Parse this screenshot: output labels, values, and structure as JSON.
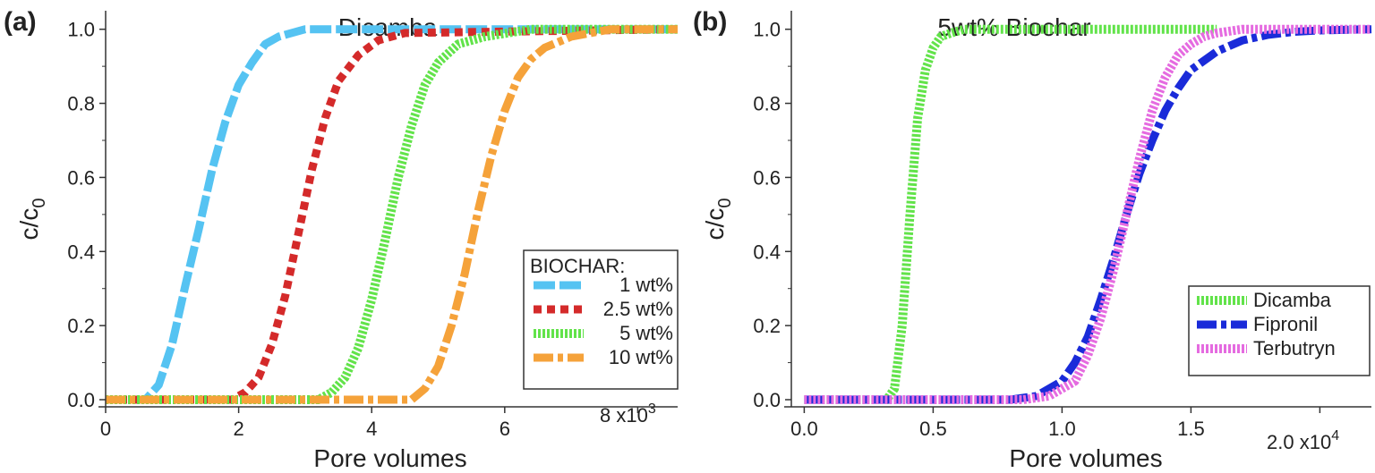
{
  "chart_data": [
    {
      "panel_label": "(a)",
      "type": "line",
      "title": "Dicamba",
      "xlabel": "Pore volumes",
      "ylabel": "c/c",
      "ylabel_sub": "0",
      "x_multiplier": "x10",
      "x_multiplier_exp": "3",
      "xlim": [
        0,
        8600
      ],
      "ylim": [
        0,
        1.05
      ],
      "xticks": [
        0,
        2000,
        4000,
        6000,
        8000
      ],
      "xtick_labels": [
        "0",
        "2",
        "4",
        "6",
        "8"
      ],
      "yticks": [
        0.0,
        0.2,
        0.4,
        0.6,
        0.8,
        1.0
      ],
      "ytick_labels": [
        "0.0",
        "0.2",
        "0.4",
        "0.6",
        "0.8",
        "1.0"
      ],
      "legend": {
        "title": "BIOCHAR:",
        "position": "bottom-right"
      },
      "series": [
        {
          "name": "1 wt%",
          "color": "#55c3f2",
          "dash": "dash",
          "x": [
            0,
            600,
            800,
            1000,
            1200,
            1400,
            1600,
            1800,
            2000,
            2200,
            2400,
            2600,
            3000,
            8600
          ],
          "y": [
            0,
            0,
            0.04,
            0.15,
            0.31,
            0.46,
            0.62,
            0.75,
            0.85,
            0.91,
            0.96,
            0.98,
            1.0,
            1.0
          ]
        },
        {
          "name": "2.5 wt%",
          "color": "#d42a2a",
          "dash": "dot",
          "x": [
            0,
            1900,
            2100,
            2300,
            2500,
            2700,
            2900,
            3100,
            3300,
            3500,
            3800,
            4100,
            4500,
            8600
          ],
          "y": [
            0,
            0,
            0.02,
            0.06,
            0.15,
            0.28,
            0.45,
            0.62,
            0.76,
            0.86,
            0.93,
            0.97,
            0.99,
            1.0
          ]
        },
        {
          "name": "5 wt%",
          "color": "#62e34a",
          "dash": "hatch",
          "x": [
            0,
            3200,
            3400,
            3600,
            3800,
            4000,
            4200,
            4400,
            4600,
            4800,
            5000,
            5300,
            5700,
            6400,
            8600
          ],
          "y": [
            0,
            0,
            0.02,
            0.06,
            0.14,
            0.27,
            0.43,
            0.6,
            0.74,
            0.85,
            0.91,
            0.96,
            0.98,
            1.0,
            1.0
          ]
        },
        {
          "name": "10 wt%",
          "color": "#f5a23a",
          "dash": "dashdot",
          "x": [
            0,
            4600,
            4800,
            5000,
            5200,
            5400,
            5600,
            5800,
            6000,
            6200,
            6400,
            6600,
            7000,
            7600,
            8600
          ],
          "y": [
            0,
            0,
            0.03,
            0.09,
            0.2,
            0.34,
            0.51,
            0.66,
            0.78,
            0.87,
            0.92,
            0.95,
            0.98,
            1.0,
            1.0
          ]
        }
      ]
    },
    {
      "panel_label": "(b)",
      "type": "line",
      "title": "5wt% Biochar",
      "xlabel": "Pore volumes",
      "ylabel": "c/c",
      "ylabel_sub": "0",
      "x_multiplier": "x10",
      "x_multiplier_exp": "4",
      "xlim": [
        -500,
        22000
      ],
      "ylim": [
        0,
        1.05
      ],
      "xticks": [
        0,
        5000,
        10000,
        15000,
        20000
      ],
      "xtick_labels": [
        "0.0",
        "0.5",
        "1.0",
        "1.5",
        "2.0"
      ],
      "yticks": [
        0.0,
        0.2,
        0.4,
        0.6,
        0.8,
        1.0
      ],
      "ytick_labels": [
        "0.0",
        "0.2",
        "0.4",
        "0.6",
        "0.8",
        "1.0"
      ],
      "legend": {
        "title": "",
        "position": "bottom-right"
      },
      "series": [
        {
          "name": "Dicamba",
          "color": "#62e34a",
          "dash": "hatch",
          "x": [
            0,
            3200,
            3500,
            3800,
            4100,
            4400,
            4700,
            5000,
            5300,
            5700,
            6200,
            16000
          ],
          "y": [
            0,
            0,
            0.03,
            0.2,
            0.5,
            0.76,
            0.89,
            0.95,
            0.98,
            0.99,
            1.0,
            1.0
          ]
        },
        {
          "name": "Fipronil",
          "color": "#1a2bd9",
          "dash": "dashdot",
          "x": [
            0,
            8000,
            9000,
            10000,
            10500,
            11000,
            11500,
            12000,
            12500,
            13000,
            13500,
            14000,
            14500,
            15000,
            16000,
            17000,
            18000,
            19000,
            20000,
            22000
          ],
          "y": [
            0,
            0,
            0.01,
            0.05,
            0.1,
            0.17,
            0.27,
            0.38,
            0.5,
            0.61,
            0.7,
            0.78,
            0.84,
            0.89,
            0.94,
            0.97,
            0.985,
            0.993,
            0.997,
            1.0
          ]
        },
        {
          "name": "Terbutryn",
          "color": "#e56be0",
          "dash": "hatch",
          "x": [
            0,
            8500,
            9500,
            10500,
            11000,
            11500,
            12000,
            12500,
            13000,
            13500,
            14000,
            14500,
            15000,
            15500,
            16000,
            17000,
            18000,
            22000
          ],
          "y": [
            0,
            0,
            0.01,
            0.05,
            0.12,
            0.22,
            0.35,
            0.5,
            0.65,
            0.78,
            0.87,
            0.93,
            0.96,
            0.98,
            0.99,
            1.0,
            1.0,
            1.0
          ]
        }
      ]
    }
  ]
}
